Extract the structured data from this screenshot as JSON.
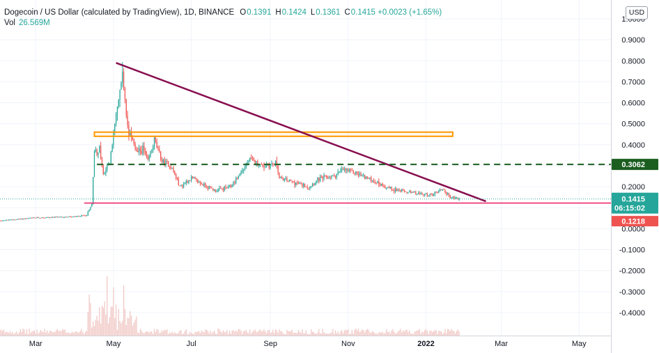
{
  "legend": {
    "symbol": "Dogecoin / US Dollar (calculated by TradingView), 1D, BINANCE",
    "o_label": "O",
    "o_value": "0.1391",
    "h_label": "H",
    "h_value": "0.1424",
    "l_label": "L",
    "l_value": "0.1361",
    "c_label": "C",
    "c_value": "0.1415 +0.0023 (+1.65%)",
    "vol_label": "Vol",
    "vol_value": "26.569M"
  },
  "currency_button": "USD",
  "colors": {
    "up": "#26a69a",
    "down": "#ef5350",
    "volume": "#f0c7c4",
    "trendline": "#880e4f",
    "zone": "#ff9800",
    "support": "#e91e63",
    "resistance_dash": "#1b5e20",
    "current_price": "#26a69a",
    "grid": "#f0f3fa"
  },
  "chart_data": {
    "type": "candlestick",
    "x_ticks": [
      "Mar",
      "May",
      "Jul",
      "Sep",
      "Nov",
      "2022",
      "Mar",
      "May"
    ],
    "y_ticks": [
      "1.0000",
      "0.9000",
      "0.8000",
      "0.7000",
      "0.6000",
      "0.5000",
      "0.4000",
      "0.3000",
      "0.2000",
      "0.1000",
      "0.0000",
      "-0.1000",
      "-0.2000",
      "-0.3000",
      "-0.4000"
    ],
    "ylim": [
      -0.45,
      1.0
    ],
    "grid": "on",
    "price_path": [
      [
        "2021-02-01",
        0.038
      ],
      [
        "2021-03-01",
        0.052
      ],
      [
        "2021-04-01",
        0.057
      ],
      [
        "2021-04-10",
        0.065
      ],
      [
        "2021-04-14",
        0.12
      ],
      [
        "2021-04-16",
        0.36
      ],
      [
        "2021-04-20",
        0.38
      ],
      [
        "2021-04-23",
        0.26
      ],
      [
        "2021-04-28",
        0.32
      ],
      [
        "2021-05-05",
        0.62
      ],
      [
        "2021-05-08",
        0.74
      ],
      [
        "2021-05-12",
        0.48
      ],
      [
        "2021-05-19",
        0.36
      ],
      [
        "2021-05-24",
        0.38
      ],
      [
        "2021-05-28",
        0.32
      ],
      [
        "2021-06-02",
        0.42
      ],
      [
        "2021-06-08",
        0.32
      ],
      [
        "2021-06-15",
        0.3
      ],
      [
        "2021-06-22",
        0.2
      ],
      [
        "2021-07-01",
        0.24
      ],
      [
        "2021-07-20",
        0.18
      ],
      [
        "2021-08-01",
        0.2
      ],
      [
        "2021-08-16",
        0.33
      ],
      [
        "2021-08-25",
        0.3
      ],
      [
        "2021-09-06",
        0.31
      ],
      [
        "2021-09-08",
        0.24
      ],
      [
        "2021-09-20",
        0.22
      ],
      [
        "2021-10-01",
        0.2
      ],
      [
        "2021-10-10",
        0.24
      ],
      [
        "2021-10-20",
        0.25
      ],
      [
        "2021-10-28",
        0.28
      ],
      [
        "2021-11-05",
        0.27
      ],
      [
        "2021-11-20",
        0.23
      ],
      [
        "2021-12-04",
        0.19
      ],
      [
        "2021-12-20",
        0.17
      ],
      [
        "2022-01-05",
        0.16
      ],
      [
        "2022-01-14",
        0.19
      ],
      [
        "2022-01-20",
        0.15
      ],
      [
        "2022-01-27",
        0.14
      ]
    ],
    "annotations": {
      "descending_trendline": [
        [
          "2021-05-03",
          0.79
        ],
        [
          "2022-02-17",
          0.13
        ]
      ],
      "resistance_zone": {
        "from": "2021-04-16",
        "to": "2022-01-22",
        "low": 0.44,
        "high": 0.46
      },
      "dashed_level": {
        "value": 0.3062,
        "label": "0.3062"
      },
      "support_level": {
        "value": 0.1218,
        "label": "0.1218"
      },
      "current_price": {
        "value": 0.1415,
        "label": "0.1415",
        "countdown": "06:15:02"
      }
    }
  }
}
